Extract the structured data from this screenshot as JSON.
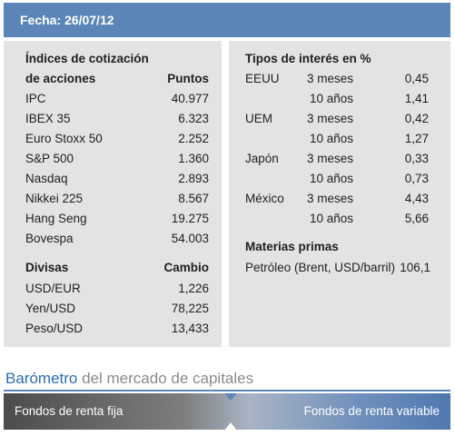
{
  "header": {
    "date_label": "Fecha: 26/07/12"
  },
  "indices": {
    "title_line1": "Índices de cotización",
    "title_line2": "de acciones",
    "value_header": "Puntos",
    "rows": [
      {
        "name": "IPC",
        "value": "40.977"
      },
      {
        "name": "IBEX 35",
        "value": "6.323"
      },
      {
        "name": "Euro Stoxx 50",
        "value": "2.252"
      },
      {
        "name": "S&P 500",
        "value": "1.360"
      },
      {
        "name": "Nasdaq",
        "value": "2.893"
      },
      {
        "name": "Nikkei 225",
        "value": "8.567"
      },
      {
        "name": "Hang Seng",
        "value": "19.275"
      },
      {
        "name": "Bovespa",
        "value": "54.003"
      }
    ]
  },
  "divisas": {
    "title": "Divisas",
    "value_header": "Cambio",
    "rows": [
      {
        "name": "USD/EUR",
        "value": "1,226"
      },
      {
        "name": "Yen/USD",
        "value": "78,225"
      },
      {
        "name": "Peso/USD",
        "value": "13,433"
      }
    ]
  },
  "tipos": {
    "title": "Tipos de interés en %",
    "rows": [
      {
        "country": "EEUU",
        "term": "3 meses",
        "value": "0,45"
      },
      {
        "country": "",
        "term": "10 años",
        "value": "1,41"
      },
      {
        "country": "UEM",
        "term": "3 meses",
        "value": "0,42"
      },
      {
        "country": "",
        "term": "10 años",
        "value": "1,27"
      },
      {
        "country": "Japón",
        "term": "3 meses",
        "value": "0,33"
      },
      {
        "country": "",
        "term": "10 años",
        "value": "0,73"
      },
      {
        "country": "México",
        "term": "3 meses",
        "value": "4,43"
      },
      {
        "country": "",
        "term": "10 años",
        "value": "5,66"
      }
    ]
  },
  "materias": {
    "title": "Materias primas",
    "rows": [
      {
        "name": "Petróleo (Brent, USD/barril)",
        "value": "106,1"
      }
    ]
  },
  "barometro": {
    "title_part1": "Barómetro",
    "title_part2": " del mercado de capitales",
    "left_label": "Fondos de renta fija",
    "right_label": "Fondos de renta variable",
    "colors": {
      "accent": "#5b86b7",
      "title_blue": "#2b6cb3"
    }
  }
}
